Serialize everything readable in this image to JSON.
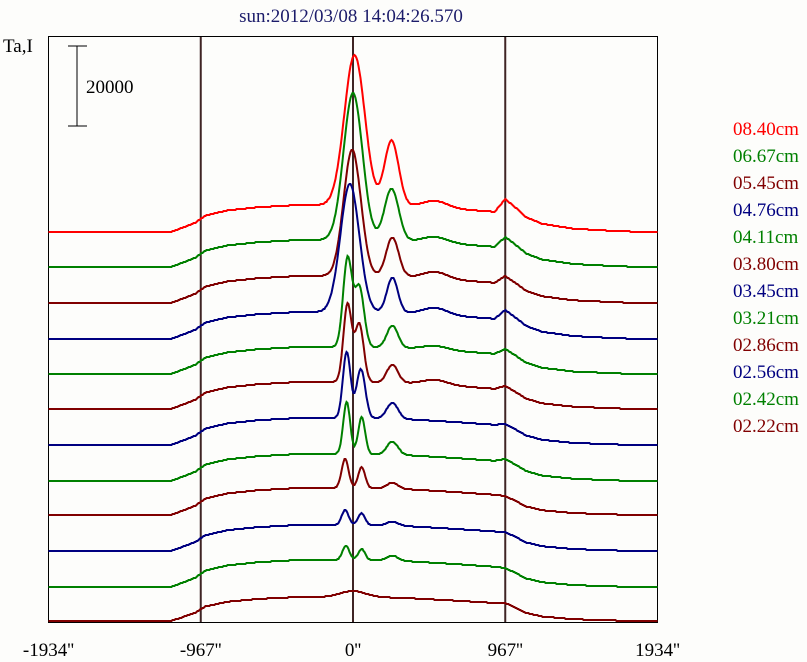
{
  "chart_data": {
    "type": "line",
    "title": "sun:2012/03/08 14:04:26.570",
    "ylabel": "Ta,I",
    "scale_bar_label": "20000",
    "scale_bar_value": 20000,
    "xlim": [
      -1934,
      1934
    ],
    "x_ticks": [
      -1934,
      -967,
      0,
      967,
      1934
    ],
    "x_tick_labels": [
      "-1934''",
      "-967''",
      "0''",
      "967''",
      "1934''"
    ],
    "vertical_lines": [
      -967,
      0,
      967
    ],
    "legend_placement": "right",
    "colors": {
      "red": "#ff0000",
      "green": "#008000",
      "darkred": "#800000",
      "blue": "#000080",
      "title": "#1c1c6a",
      "grid": "#3f2424"
    },
    "series": [
      {
        "name": "08.40cm",
        "color": "#ff0000",
        "offset": 97250,
        "plateau": 6750,
        "limb": 8250,
        "peaks": [
          {
            "x": 10,
            "amp": 37500,
            "w": 65
          },
          {
            "x": 245,
            "amp": 16250,
            "w": 45
          },
          {
            "x": 520,
            "amp": 1750,
            "w": 80
          }
        ]
      },
      {
        "name": "06.67cm",
        "color": "#008000",
        "offset": 88500,
        "plateau": 6750,
        "limb": 7500,
        "peaks": [
          {
            "x": 0,
            "amp": 36750,
            "w": 60
          },
          {
            "x": 245,
            "amp": 13000,
            "w": 45
          },
          {
            "x": 520,
            "amp": 1500,
            "w": 80
          }
        ]
      },
      {
        "name": "05.45cm",
        "color": "#800000",
        "offset": 79500,
        "plateau": 6750,
        "limb": 6750,
        "peaks": [
          {
            "x": -5,
            "amp": 31500,
            "w": 55
          },
          {
            "x": 250,
            "amp": 9750,
            "w": 40
          },
          {
            "x": 520,
            "amp": 1750,
            "w": 80
          }
        ]
      },
      {
        "name": "04.76cm",
        "color": "#000080",
        "offset": 70500,
        "plateau": 6750,
        "limb": 7250,
        "peaks": [
          {
            "x": -20,
            "amp": 32000,
            "w": 60
          },
          {
            "x": 250,
            "amp": 8750,
            "w": 35
          },
          {
            "x": 520,
            "amp": 1750,
            "w": 80
          }
        ]
      },
      {
        "name": "04.11cm",
        "color": "#008000",
        "offset": 61750,
        "plateau": 6750,
        "limb": 6250,
        "peaks": [
          {
            "x": -35,
            "amp": 22000,
            "w": 28
          },
          {
            "x": 40,
            "amp": 15000,
            "w": 30
          },
          {
            "x": 250,
            "amp": 5500,
            "w": 35
          },
          {
            "x": 520,
            "amp": 1000,
            "w": 80
          }
        ]
      },
      {
        "name": "03.80cm",
        "color": "#800000",
        "offset": 53000,
        "plateau": 6750,
        "limb": 5750,
        "peaks": [
          {
            "x": -35,
            "amp": 19250,
            "w": 26
          },
          {
            "x": 40,
            "amp": 14500,
            "w": 28
          },
          {
            "x": 250,
            "amp": 4500,
            "w": 35
          },
          {
            "x": 520,
            "amp": 1250,
            "w": 80
          }
        ]
      },
      {
        "name": "03.45cm",
        "color": "#000080",
        "offset": 44000,
        "plateau": 6750,
        "limb": 5250,
        "peaks": [
          {
            "x": -40,
            "amp": 16500,
            "w": 24
          },
          {
            "x": 50,
            "amp": 12250,
            "w": 28
          },
          {
            "x": 250,
            "amp": 4000,
            "w": 35
          }
        ]
      },
      {
        "name": "03.21cm",
        "color": "#008000",
        "offset": 35000,
        "plateau": 6750,
        "limb": 5500,
        "peaks": [
          {
            "x": -40,
            "amp": 13000,
            "w": 22
          },
          {
            "x": 55,
            "amp": 9250,
            "w": 22
          },
          {
            "x": 250,
            "amp": 3250,
            "w": 35
          }
        ]
      },
      {
        "name": "02.86cm",
        "color": "#800000",
        "offset": 26500,
        "plateau": 6750,
        "limb": 4750,
        "peaks": [
          {
            "x": -50,
            "amp": 7250,
            "w": 22
          },
          {
            "x": 55,
            "amp": 5250,
            "w": 22
          },
          {
            "x": 250,
            "amp": 1500,
            "w": 35
          }
        ]
      },
      {
        "name": "02.56cm",
        "color": "#000080",
        "offset": 17500,
        "plateau": 6500,
        "limb": 4750,
        "peaks": [
          {
            "x": -50,
            "amp": 3750,
            "w": 22
          },
          {
            "x": 55,
            "amp": 3000,
            "w": 22
          },
          {
            "x": 250,
            "amp": 1000,
            "w": 35
          }
        ]
      },
      {
        "name": "02.42cm",
        "color": "#008000",
        "offset": 8500,
        "plateau": 6750,
        "limb": 4750,
        "peaks": [
          {
            "x": -45,
            "amp": 3500,
            "w": 22
          },
          {
            "x": 55,
            "amp": 2750,
            "w": 22
          },
          {
            "x": 250,
            "amp": 1250,
            "w": 35
          }
        ]
      },
      {
        "name": "02.22cm",
        "color": "#800000",
        "offset": 0,
        "plateau": 6000,
        "limb": 4500,
        "peaks": [
          {
            "x": 0,
            "amp": 1500,
            "w": 80
          }
        ]
      }
    ]
  }
}
